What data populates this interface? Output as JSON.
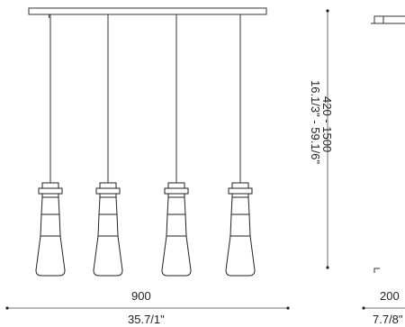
{
  "dimensions": {
    "width_mm": "900",
    "width_in": "35.7/1\"",
    "height_mm": "420 - 1500",
    "height_in": "16.1/3\" - 59.1/6\"",
    "depth_mm": "200",
    "depth_in": "7.7/8\""
  },
  "pendants": {
    "count": 4
  }
}
